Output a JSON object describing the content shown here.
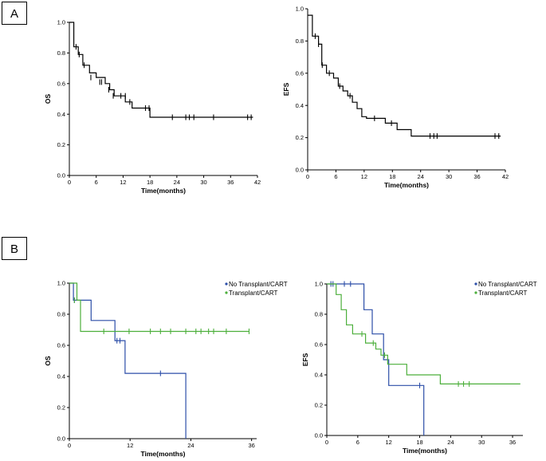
{
  "panels": [
    {
      "label": "A"
    },
    {
      "label": "B"
    }
  ],
  "chart_data": [
    {
      "type": "line",
      "step": true,
      "xlabel": "Time(months)",
      "ylabel": "OS",
      "xlim": [
        0,
        42
      ],
      "ylim": [
        0,
        1
      ],
      "xticks": [
        0,
        6,
        12,
        18,
        24,
        30,
        36,
        42
      ],
      "yticks": [
        0.0,
        0.2,
        0.4,
        0.6,
        0.8,
        1.0
      ],
      "series": [
        {
          "color": "#000000",
          "x": [
            0,
            1,
            1,
            2,
            2,
            3,
            3,
            4.5,
            4.5,
            6,
            6,
            8,
            8,
            9,
            9,
            10,
            10,
            12.5,
            12.5,
            14,
            14,
            18,
            18,
            41
          ],
          "y": [
            1.0,
            1.0,
            0.84,
            0.84,
            0.79,
            0.79,
            0.72,
            0.72,
            0.67,
            0.67,
            0.64,
            0.64,
            0.6,
            0.6,
            0.56,
            0.56,
            0.52,
            0.52,
            0.48,
            0.48,
            0.44,
            0.44,
            0.38,
            0.38
          ],
          "censor_x": [
            1.5,
            2.2,
            3.3,
            4.8,
            6.8,
            7.2,
            8.8,
            9.8,
            11.5,
            12.5,
            13.5,
            17.0,
            17.8,
            23.0,
            26.0,
            26.8,
            27.8,
            32.2,
            39.8,
            40.6
          ],
          "censor_y": [
            0.84,
            0.79,
            0.72,
            0.64,
            0.61,
            0.61,
            0.56,
            0.52,
            0.52,
            0.52,
            0.48,
            0.44,
            0.44,
            0.38,
            0.38,
            0.38,
            0.38,
            0.38,
            0.38,
            0.38
          ]
        }
      ]
    },
    {
      "type": "line",
      "step": true,
      "xlabel": "Time(months)",
      "ylabel": "EFS",
      "xlim": [
        0,
        42
      ],
      "ylim": [
        0,
        1
      ],
      "xticks": [
        0,
        6,
        12,
        18,
        24,
        30,
        36,
        42
      ],
      "yticks": [
        0.0,
        0.2,
        0.4,
        0.6,
        0.8,
        1.0
      ],
      "series": [
        {
          "color": "#000000",
          "x": [
            0,
            1,
            1,
            2.3,
            2.3,
            3,
            3,
            4,
            4,
            5.5,
            5.5,
            6.5,
            6.5,
            7.5,
            7.5,
            8.5,
            8.5,
            9.5,
            9.5,
            10.5,
            10.5,
            11.5,
            11.5,
            12.5,
            12.5,
            16.5,
            16.5,
            19,
            19,
            22,
            22,
            41
          ],
          "y": [
            0.96,
            0.96,
            0.83,
            0.83,
            0.78,
            0.78,
            0.65,
            0.65,
            0.6,
            0.6,
            0.57,
            0.57,
            0.52,
            0.52,
            0.49,
            0.49,
            0.46,
            0.46,
            0.42,
            0.42,
            0.38,
            0.38,
            0.33,
            0.33,
            0.32,
            0.32,
            0.29,
            0.29,
            0.25,
            0.25,
            0.21,
            0.21
          ],
          "censor_x": [
            1.6,
            2.3,
            3.1,
            4.6,
            6.8,
            9.0,
            14.2,
            17.8,
            26.0,
            26.8,
            27.5,
            39.8,
            40.6
          ],
          "censor_y": [
            0.83,
            0.78,
            0.65,
            0.6,
            0.52,
            0.46,
            0.32,
            0.29,
            0.21,
            0.21,
            0.21,
            0.21,
            0.21
          ]
        }
      ]
    },
    {
      "type": "line",
      "step": true,
      "xlabel": "Time(months)",
      "ylabel": "OS",
      "xlim": [
        0,
        37
      ],
      "ylim": [
        0,
        1
      ],
      "xticks": [
        0,
        12,
        24,
        36
      ],
      "yticks": [
        0.0,
        0.2,
        0.4,
        0.6,
        0.8,
        1.0
      ],
      "legend": [
        "No Transplant/CART",
        "Transplant/CART"
      ],
      "series": [
        {
          "name": "No Transplant/CART",
          "color": "#2c4ea8",
          "x": [
            0,
            0.8,
            0.8,
            4.3,
            4.3,
            9.0,
            9.0,
            11.0,
            11.0,
            23.0,
            23.0
          ],
          "y": [
            1.0,
            1.0,
            0.89,
            0.89,
            0.76,
            0.76,
            0.63,
            0.63,
            0.42,
            0.42,
            0.0
          ],
          "censor_x": [
            1.0,
            9.4,
            10.0,
            18.0
          ],
          "censor_y": [
            0.89,
            0.63,
            0.63,
            0.42
          ]
        },
        {
          "name": "Transplant/CART",
          "color": "#4caf3b",
          "x": [
            0,
            1.5,
            1.5,
            2.2,
            2.2,
            35.5
          ],
          "y": [
            1.0,
            1.0,
            0.89,
            0.89,
            0.69,
            0.69
          ],
          "censor_x": [
            1.0,
            6.8,
            11.8,
            16.0,
            18.0,
            20.0,
            23.0,
            25.0,
            26.0,
            27.5,
            28.5,
            31.0,
            35.5
          ],
          "censor_y": [
            0.89,
            0.69,
            0.69,
            0.69,
            0.69,
            0.69,
            0.69,
            0.69,
            0.69,
            0.69,
            0.69,
            0.69,
            0.69
          ]
        }
      ]
    },
    {
      "type": "line",
      "step": true,
      "xlabel": "Time(months)",
      "ylabel": "EFS",
      "xlim": [
        0,
        38
      ],
      "ylim": [
        0,
        1
      ],
      "xticks": [
        0,
        6,
        12,
        18,
        24,
        30,
        36
      ],
      "yticks": [
        0.0,
        0.2,
        0.4,
        0.6,
        0.8,
        1.0
      ],
      "legend": [
        "No Transplant/CART",
        "Transplant/CART"
      ],
      "series": [
        {
          "name": "No Transplant/CART",
          "color": "#2c4ea8",
          "x": [
            0,
            7.2,
            7.2,
            8.8,
            8.8,
            11.0,
            11.0,
            12.0,
            12.0,
            18.8,
            18.8
          ],
          "y": [
            1.0,
            1.0,
            0.83,
            0.83,
            0.67,
            0.67,
            0.5,
            0.5,
            0.33,
            0.33,
            0.0
          ],
          "censor_x": [
            0.8,
            1.2,
            3.4,
            4.6,
            18.0
          ],
          "censor_y": [
            1.0,
            1.0,
            1.0,
            1.0,
            0.33
          ]
        },
        {
          "name": "Transplant/CART",
          "color": "#4caf3b",
          "x": [
            0,
            1.8,
            1.8,
            2.8,
            2.8,
            3.8,
            3.8,
            5.0,
            5.0,
            7.5,
            7.5,
            9.5,
            9.5,
            10.5,
            10.5,
            11.8,
            11.8,
            15.5,
            15.5,
            22.0,
            22.0,
            37.5
          ],
          "y": [
            1.0,
            1.0,
            0.93,
            0.93,
            0.83,
            0.83,
            0.73,
            0.73,
            0.67,
            0.67,
            0.61,
            0.61,
            0.57,
            0.57,
            0.53,
            0.53,
            0.47,
            0.47,
            0.4,
            0.4,
            0.34,
            0.34
          ],
          "censor_x": [
            6.8,
            9.0,
            11.2,
            25.5,
            26.5,
            27.6
          ],
          "censor_y": [
            0.67,
            0.61,
            0.53,
            0.34,
            0.34,
            0.34
          ]
        }
      ]
    }
  ]
}
